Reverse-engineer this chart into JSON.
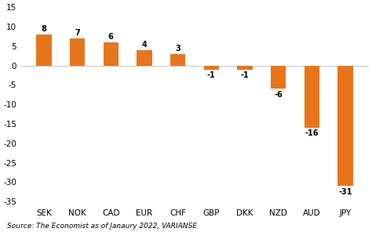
{
  "categories": [
    "SEK",
    "NOK",
    "CAD",
    "EUR",
    "CHF",
    "GBP",
    "DKK",
    "NZD",
    "AUD",
    "JPY"
  ],
  "values": [
    8,
    7,
    6,
    4,
    3,
    -1,
    -1,
    -6,
    -16,
    -31
  ],
  "bar_color": "#E8751A",
  "ylim": [
    -36,
    16
  ],
  "yticks": [
    15,
    10,
    5,
    0,
    -5,
    -10,
    -15,
    -20,
    -25,
    -30,
    -35
  ],
  "source_text": "Source: The Economist as of Janaury 2022, VARIANSE",
  "background_color": "#ffffff",
  "label_fontsize": 7.0,
  "tick_fontsize": 7.5,
  "source_fontsize": 6.5
}
